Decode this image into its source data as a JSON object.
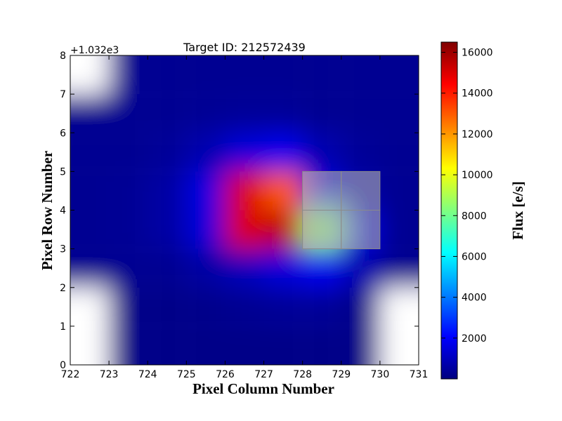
{
  "chart_data": {
    "type": "heatmap",
    "title": "Target ID: 212572439",
    "xlabel": "Pixel Column Number",
    "ylabel": "Pixel Row Number",
    "y_offset_label": "+1.032e3",
    "xlim": [
      722,
      731
    ],
    "ylim": [
      0,
      8
    ],
    "xticks": [
      "722",
      "723",
      "724",
      "725",
      "726",
      "727",
      "728",
      "729",
      "730",
      "731"
    ],
    "yticks": [
      "0",
      "1",
      "2",
      "3",
      "4",
      "5",
      "6",
      "7",
      "8"
    ],
    "colorbar": {
      "label": "Flux [e/s]",
      "ticks": [
        "2000",
        "4000",
        "6000",
        "8000",
        "10000",
        "12000",
        "14000",
        "16000"
      ],
      "vmin": 0,
      "vmax": 16500,
      "colormap": "jet"
    },
    "grid": false,
    "masked_color": "#ffffff",
    "column_centers": [
      722.5,
      723.5,
      724.5,
      725.5,
      726.5,
      727.5,
      728.5,
      729.5,
      730.5
    ],
    "row_centers": [
      0.5,
      1.5,
      2.5,
      3.5,
      4.5,
      5.5,
      6.5,
      7.5
    ],
    "flux_rows": [
      [
        null,
        150,
        150,
        150,
        150,
        150,
        150,
        150,
        null
      ],
      [
        null,
        150,
        150,
        200,
        300,
        400,
        400,
        200,
        null
      ],
      [
        300,
        300,
        300,
        600,
        1000,
        1500,
        1800,
        800,
        300
      ],
      [
        300,
        350,
        600,
        1500,
        15000,
        15500,
        8500,
        1500,
        300
      ],
      [
        300,
        350,
        600,
        1600,
        15000,
        13000,
        1500,
        600,
        300
      ],
      [
        300,
        300,
        400,
        800,
        1500,
        1800,
        800,
        400,
        300
      ],
      [
        300,
        300,
        300,
        350,
        400,
        400,
        300,
        300,
        300
      ],
      [
        null,
        300,
        300,
        300,
        300,
        300,
        300,
        300,
        300
      ]
    ],
    "aperture": {
      "description": "highlighted aperture pixels",
      "pixels": [
        [
          728,
          3
        ],
        [
          729,
          3
        ],
        [
          728,
          4
        ],
        [
          729,
          4
        ]
      ],
      "color": "#b4b4b4",
      "opacity": 0.6
    }
  }
}
